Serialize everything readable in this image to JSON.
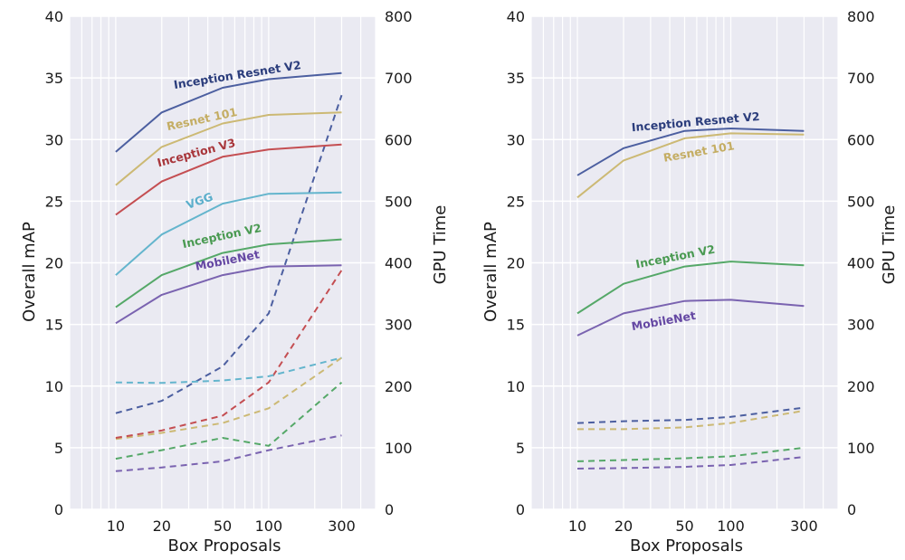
{
  "chart_data": [
    {
      "type": "line",
      "panel": "left",
      "title": "",
      "xlabel": "Box Proposals",
      "ylabel": "Overall mAP",
      "y2label": "GPU Time",
      "xscale": "log",
      "xlim": [
        5,
        500
      ],
      "ylim": [
        0,
        40
      ],
      "y2lim": [
        0,
        800
      ],
      "x": [
        10,
        20,
        50,
        100,
        300
      ],
      "xticks": [
        "10",
        "20",
        "50",
        "100",
        "300"
      ],
      "yticks": [
        "0",
        "5",
        "10",
        "15",
        "20",
        "25",
        "30",
        "35",
        "40"
      ],
      "y2ticks": [
        "0",
        "100",
        "200",
        "300",
        "400",
        "500",
        "600",
        "700",
        "800"
      ],
      "grid": true,
      "legend": "inline-labels",
      "series": [
        {
          "name": "Inception Resnet V2",
          "color": "#4c5fa0",
          "label_color": "#2b3d7c",
          "map": [
            29.0,
            32.2,
            34.2,
            34.9,
            35.4
          ],
          "gpu_time": [
            156,
            176,
            232,
            318,
            672
          ]
        },
        {
          "name": "Resnet 101",
          "color": "#ccb974",
          "label_color": "#c4ad63",
          "map": [
            26.3,
            29.4,
            31.3,
            32.0,
            32.2
          ],
          "gpu_time": [
            114,
            124,
            140,
            164,
            246
          ]
        },
        {
          "name": "Inception V3",
          "color": "#c44e52",
          "label_color": "#a8363b",
          "map": [
            23.9,
            26.6,
            28.6,
            29.2,
            29.6
          ],
          "gpu_time": [
            116,
            128,
            152,
            206,
            388
          ]
        },
        {
          "name": "VGG",
          "color": "#64b5cd",
          "label_color": "#5aaecb",
          "map": [
            19.0,
            22.3,
            24.8,
            25.6,
            25.7
          ],
          "gpu_time": [
            206,
            205,
            209,
            216,
            246
          ]
        },
        {
          "name": "Inception V2",
          "color": "#55a868",
          "label_color": "#4a9a52",
          "map": [
            16.4,
            19.0,
            20.8,
            21.5,
            21.9
          ],
          "gpu_time": [
            82,
            96,
            116,
            103,
            206
          ]
        },
        {
          "name": "MobileNet",
          "color": "#7a63b0",
          "label_color": "#6548a3",
          "map": [
            15.1,
            17.4,
            19.0,
            19.7,
            19.8
          ],
          "gpu_time": [
            62,
            68,
            78,
            96,
            120
          ]
        }
      ]
    },
    {
      "type": "line",
      "panel": "right",
      "title": "",
      "xlabel": "Box Proposals",
      "ylabel": "Overall mAP",
      "y2label": "GPU Time",
      "xscale": "log",
      "xlim": [
        5,
        500
      ],
      "ylim": [
        0,
        40
      ],
      "y2lim": [
        0,
        800
      ],
      "x": [
        10,
        20,
        50,
        100,
        300
      ],
      "xticks": [
        "10",
        "20",
        "50",
        "100",
        "300"
      ],
      "yticks": [
        "0",
        "5",
        "10",
        "15",
        "20",
        "25",
        "30",
        "35",
        "40"
      ],
      "y2ticks": [
        "0",
        "100",
        "200",
        "300",
        "400",
        "500",
        "600",
        "700",
        "800"
      ],
      "grid": true,
      "legend": "inline-labels",
      "series": [
        {
          "name": "Inception Resnet V2",
          "color": "#4c5fa0",
          "label_color": "#2b3d7c",
          "map": [
            27.1,
            29.3,
            30.7,
            30.9,
            30.7
          ],
          "gpu_time": [
            140,
            143,
            145,
            150,
            165
          ]
        },
        {
          "name": "Resnet 101",
          "color": "#ccb974",
          "label_color": "#c4ad63",
          "map": [
            25.3,
            28.3,
            30.1,
            30.5,
            30.4
          ],
          "gpu_time": [
            130,
            130,
            133,
            140,
            160
          ]
        },
        {
          "name": "Inception V2",
          "color": "#55a868",
          "label_color": "#4a9a52",
          "map": [
            15.9,
            18.3,
            19.7,
            20.1,
            19.8
          ],
          "gpu_time": [
            78,
            80,
            83,
            86,
            100
          ]
        },
        {
          "name": "MobileNet",
          "color": "#7a63b0",
          "label_color": "#6548a3",
          "map": [
            14.1,
            15.9,
            16.9,
            17.0,
            16.5
          ],
          "gpu_time": [
            66,
            67,
            69,
            72,
            85
          ]
        }
      ]
    }
  ]
}
